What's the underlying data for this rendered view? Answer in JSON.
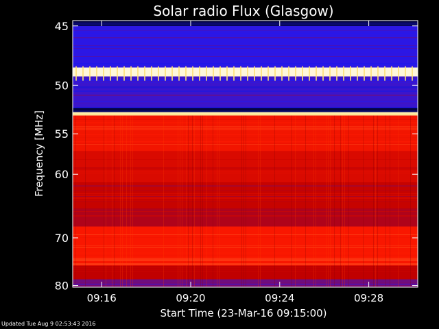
{
  "chart_data": {
    "type": "heatmap",
    "title": "Solar radio Flux (Glasgow)",
    "xlabel": "Start Time (23-Mar-16 09:15:00)",
    "ylabel": "Frequency [MHz]",
    "x_ticks": [
      "09:16",
      "09:20",
      "09:24",
      "09:28"
    ],
    "x_tick_minutes": [
      1,
      5,
      9,
      13
    ],
    "xlim_minutes": [
      -0.3,
      15.2
    ],
    "y_ticks": [
      45,
      50,
      55,
      60,
      70,
      80
    ],
    "ylim": [
      44.6,
      80.4
    ],
    "y_scale": "reciprocal",
    "grid": false,
    "colormap": [
      "#000020",
      "#1a1aff",
      "#c00000",
      "#ff1a00",
      "#ffe070",
      "#ffffff"
    ],
    "bands": [
      {
        "f0": 44.6,
        "f1": 45.0,
        "level": 0.05
      },
      {
        "f0": 45.0,
        "f1": 48.4,
        "level": 0.22
      },
      {
        "f0": 48.4,
        "f1": 49.2,
        "level": 0.95
      },
      {
        "f0": 49.2,
        "f1": 52.2,
        "level": 0.24
      },
      {
        "f0": 52.2,
        "f1": 52.6,
        "level": 0.05
      },
      {
        "f0": 52.6,
        "f1": 53.0,
        "level": 0.88
      },
      {
        "f0": 53.0,
        "f1": 57.0,
        "level": 0.56
      },
      {
        "f0": 57.0,
        "f1": 61.0,
        "level": 0.48
      },
      {
        "f0": 61.0,
        "f1": 65.0,
        "level": 0.42
      },
      {
        "f0": 65.0,
        "f1": 68.0,
        "level": 0.38
      },
      {
        "f0": 68.0,
        "f1": 75.5,
        "level": 0.58
      },
      {
        "f0": 75.5,
        "f1": 78.5,
        "level": 0.4
      },
      {
        "f0": 78.5,
        "f1": 80.4,
        "level": 0.3
      }
    ]
  },
  "footer": "Updated Tue Aug  9 02:53:43 2016"
}
